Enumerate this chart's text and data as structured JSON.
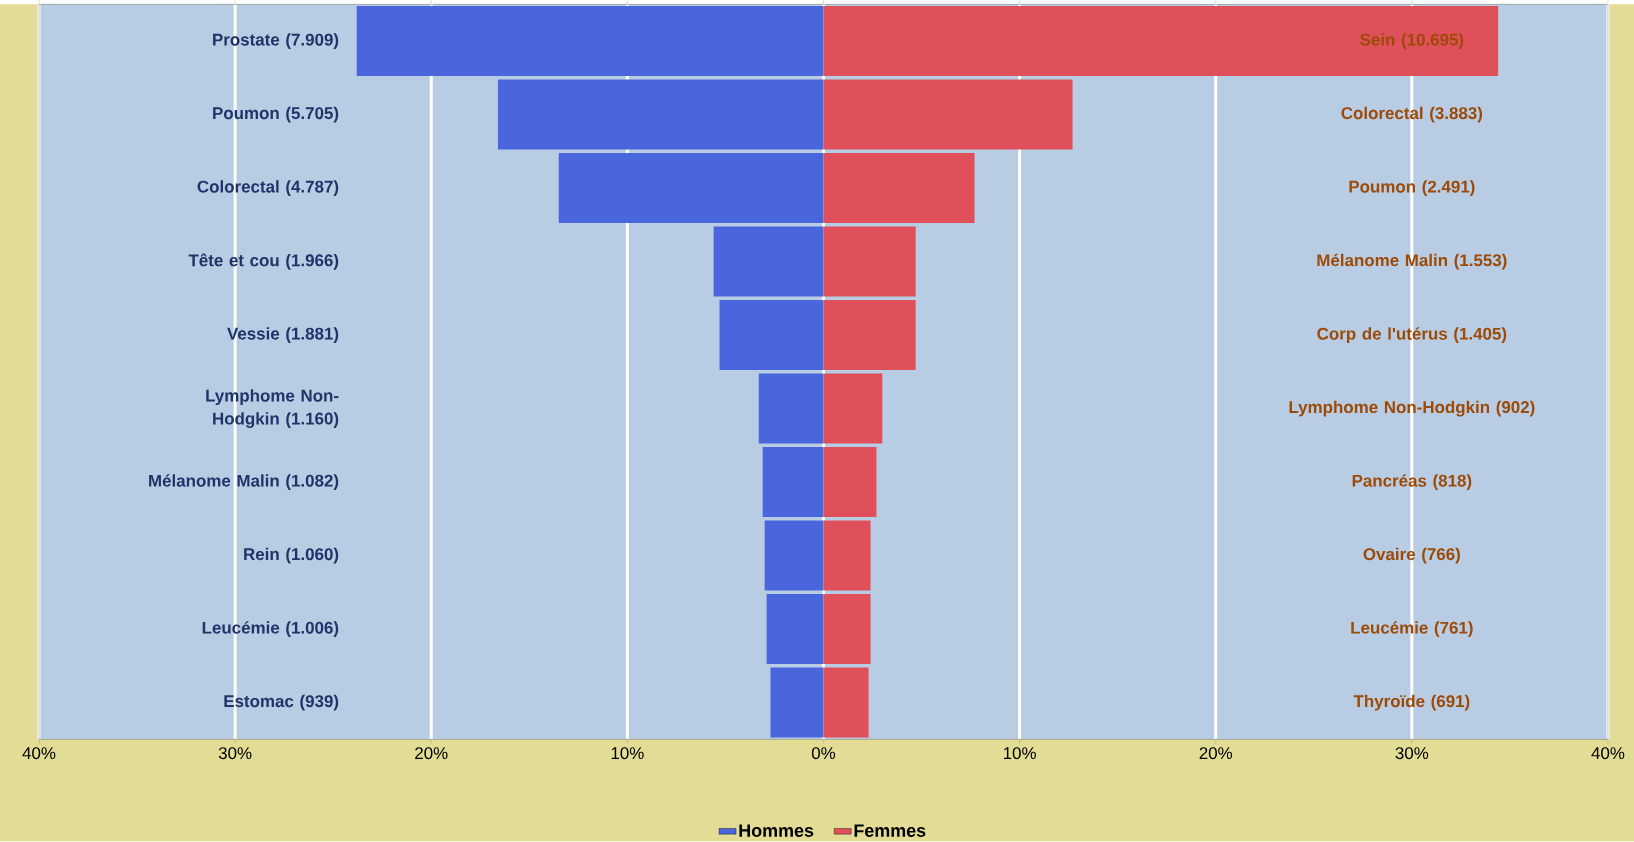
{
  "chart_data": {
    "type": "bar",
    "orientation": "horizontal",
    "categories": [
      "Prostate (7.909)",
      "Poumon (5.705)",
      "Colorectal (4.787)",
      "Tête et cou (1.966)",
      "Vessie (1.881)",
      "Lymphome Non-Hodgkin (1.160)",
      "Mélanome Malin (1.082)",
      "Rein (1.060)",
      "Leucémie (1.006)",
      "Estomac (939)"
    ],
    "series": [
      {
        "name": "Hommes",
        "color": "#4a66dd",
        "values": [
          -23.8,
          -16.6,
          -13.5,
          -5.6,
          -5.3,
          -3.3,
          -3.1,
          -3.0,
          -2.9,
          -2.7
        ]
      },
      {
        "name": "Femmes",
        "color": "#e0505a",
        "values": [
          34.4,
          12.7,
          7.7,
          4.7,
          4.7,
          3.0,
          2.7,
          2.4,
          2.4,
          2.3
        ]
      }
    ],
    "annotations": [
      "Sein (10.695)",
      "Colorectal (3.883)",
      "Poumon (2.491)",
      "Mélanome Malin (1.553)",
      "Corp de l'utérus (1.405)",
      "Lymphome Non-Hodgkin (902)",
      "Pancréas (818)",
      "Ovaire (766)",
      "Leucémie (761)",
      "Thyroïde (691)"
    ],
    "xlim": [
      -40,
      40
    ],
    "xticks": [
      {
        "value": -40,
        "label": "40%"
      },
      {
        "value": -30,
        "label": "30%"
      },
      {
        "value": -20,
        "label": "20%"
      },
      {
        "value": -10,
        "label": "10%"
      },
      {
        "value": 0,
        "label": "0%"
      },
      {
        "value": 10,
        "label": "10%"
      },
      {
        "value": 20,
        "label": "20%"
      },
      {
        "value": 30,
        "label": "30%"
      },
      {
        "value": 40,
        "label": "40%"
      }
    ],
    "grid": "x",
    "legend": "bottom",
    "stacked": true
  }
}
